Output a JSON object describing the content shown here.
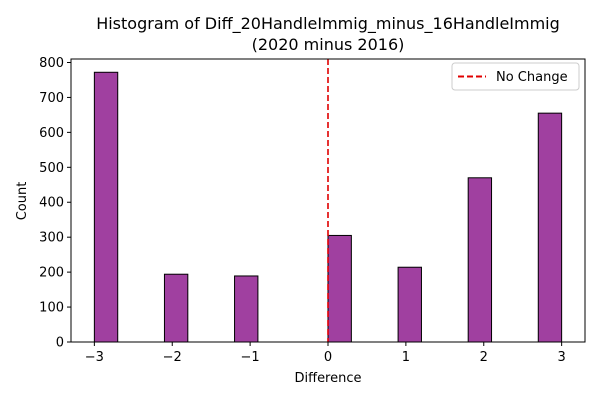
{
  "chart_data": {
    "type": "bar",
    "subtype": "histogram",
    "title": "Histogram of Diff_20HandleImmig_minus_16HandleImmig",
    "subtitle": "(2020 minus 2016)",
    "xlabel": "Difference",
    "ylabel": "Count",
    "xlim": [
      -3.3,
      3.3
    ],
    "ylim": [
      0,
      810
    ],
    "xticks": [
      -3,
      -2,
      -1,
      0,
      1,
      2,
      3
    ],
    "xtick_labels": [
      "−3",
      "−2",
      "−1",
      "0",
      "1",
      "2",
      "3"
    ],
    "yticks": [
      0,
      100,
      200,
      300,
      400,
      500,
      600,
      700,
      800
    ],
    "bins": [
      {
        "start": -3.0,
        "end": -2.7,
        "count": 772
      },
      {
        "start": -2.1,
        "end": -1.8,
        "count": 194
      },
      {
        "start": -1.2,
        "end": -0.9,
        "count": 189
      },
      {
        "start": 0.0,
        "end": 0.3,
        "count": 305
      },
      {
        "start": 0.9,
        "end": 1.2,
        "count": 214
      },
      {
        "start": 1.8,
        "end": 2.1,
        "count": 470
      },
      {
        "start": 2.7,
        "end": 3.0,
        "count": 655
      }
    ],
    "reference_line": {
      "x": 0,
      "label": "No Change",
      "color": "#e00000",
      "style": "dashed"
    },
    "bar_color": "#a040a0",
    "bar_edge_color": "#000000",
    "grid": false,
    "legend_position": "top-right"
  }
}
